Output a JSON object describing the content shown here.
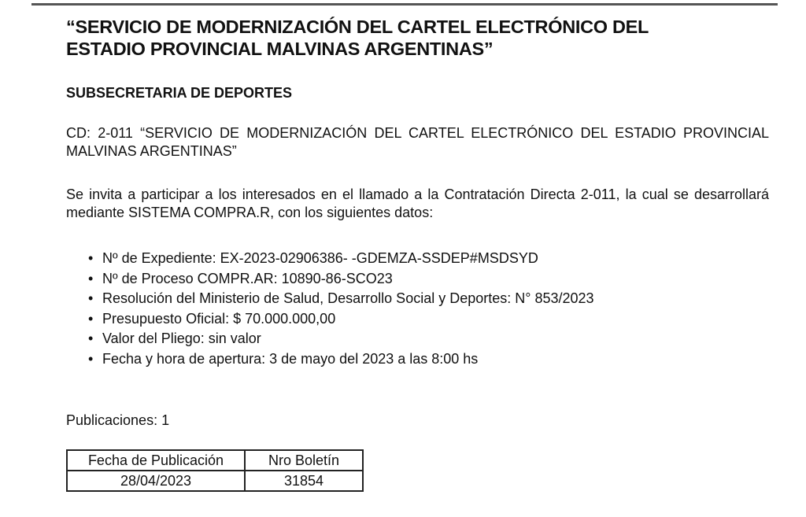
{
  "title": "“SERVICIO DE MODERNIZACIÓN DEL CARTEL ELECTRÓNICO DEL ESTADIO PROVINCIAL MALVINAS ARGENTINAS”",
  "title_line1": "“SERVICIO DE MODERNIZACIÓN DEL CARTEL ELECTRÓNICO DEL",
  "title_line2": "ESTADIO PROVINCIAL MALVINAS ARGENTINAS”",
  "subtitle": "SUBSECRETARIA DE DEPORTES",
  "cd_paragraph": "CD:  2-011 “SERVICIO DE MODERNIZACIÓN DEL CARTEL ELECTRÓNICO DEL ESTADIO PROVINCIAL MALVINAS ARGENTINAS”",
  "intro_paragraph": "Se invita a participar a los interesados en el llamado a la Contratación Directa 2-011, la cual se desarrollará mediante SISTEMA COMPRA.R, con los siguientes datos:",
  "items": [
    "Nº de Expediente: EX-2023-02906386-   -GDEMZA-SSDEP#MSDSYD",
    "Nº de Proceso COMPR.AR: 10890-86-SCO23",
    "Resolución del Ministerio de Salud, Desarrollo Social y Deportes: N° 853/2023",
    "Presupuesto Oficial: $ 70.000.000,00",
    "Valor del Pliego: sin valor",
    "Fecha y hora de apertura: 3 de mayo del 2023 a las 8:00 hs"
  ],
  "publications": "Publicaciones: 1",
  "table": {
    "headers": [
      "Fecha de Publicación",
      "Nro Boletín"
    ],
    "rows": [
      [
        "28/04/2023",
        "31854"
      ]
    ]
  }
}
